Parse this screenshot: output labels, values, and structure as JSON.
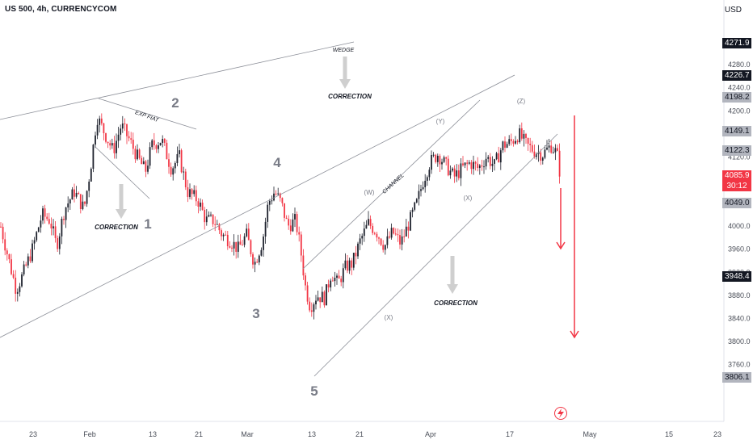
{
  "header": {
    "symbol_title": "US 500, 4h, CURRENCYCOM"
  },
  "currency_label": "USD",
  "colors": {
    "up": "#1e222d",
    "down": "#f23645",
    "line": "#8c8f98",
    "arrow": "#f23645",
    "shade": "#cfcfcf"
  },
  "chart_data": {
    "type": "candlestick",
    "title": "US 500, 4h, CURRENCYCOM",
    "ylim": [
      3740,
      4300
    ],
    "y_ticks": [
      "4280.0",
      "4240.0",
      "4200.0",
      "4160.0",
      "4120.0",
      "4080.0",
      "4040.0",
      "4000.0",
      "3960.0",
      "3920.0",
      "3880.0",
      "3840.0",
      "3800.0",
      "3760.0"
    ],
    "x_ticks": [
      "23",
      "Feb",
      "13",
      "21",
      "Mar",
      "13",
      "21",
      "Apr",
      "17",
      "May",
      "15",
      "23"
    ],
    "price_tags": [
      {
        "value": "4271.9",
        "style": "dark"
      },
      {
        "value": "4226.7",
        "style": "dark"
      },
      {
        "value": "4198.2",
        "style": "gray"
      },
      {
        "value": "4149.1",
        "style": "gray"
      },
      {
        "value": "4122.3",
        "style": "gray"
      },
      {
        "value": "4085.9",
        "style": "red"
      },
      {
        "value": "30:12",
        "style": "red"
      },
      {
        "value": "4049.0",
        "style": "gray"
      },
      {
        "value": "3948.4",
        "style": "dark"
      },
      {
        "value": "3806.1",
        "style": "gray"
      }
    ],
    "waypoints": [
      [
        0,
        4005
      ],
      [
        12,
        3935
      ],
      [
        20,
        3890
      ],
      [
        28,
        3915
      ],
      [
        40,
        3960
      ],
      [
        52,
        4020
      ],
      [
        62,
        4010
      ],
      [
        70,
        3965
      ],
      [
        80,
        4030
      ],
      [
        92,
        4060
      ],
      [
        104,
        4030
      ],
      [
        112,
        4100
      ],
      [
        120,
        4190
      ],
      [
        130,
        4160
      ],
      [
        140,
        4130
      ],
      [
        150,
        4175
      ],
      [
        160,
        4150
      ],
      [
        170,
        4120
      ],
      [
        180,
        4095
      ],
      [
        188,
        4140
      ],
      [
        200,
        4150
      ],
      [
        212,
        4100
      ],
      [
        222,
        4120
      ],
      [
        232,
        4060
      ],
      [
        245,
        4045
      ],
      [
        255,
        4010
      ],
      [
        265,
        4010
      ],
      [
        275,
        3985
      ],
      [
        285,
        3975
      ],
      [
        295,
        3960
      ],
      [
        305,
        3985
      ],
      [
        315,
        3935
      ],
      [
        325,
        3975
      ],
      [
        332,
        4040
      ],
      [
        340,
        4060
      ],
      [
        348,
        4040
      ],
      [
        356,
        4000
      ],
      [
        366,
        4010
      ],
      [
        372,
        3960
      ],
      [
        378,
        3895
      ],
      [
        384,
        3860
      ],
      [
        392,
        3880
      ],
      [
        402,
        3875
      ],
      [
        410,
        3920
      ],
      [
        418,
        3900
      ],
      [
        428,
        3930
      ],
      [
        436,
        3935
      ],
      [
        446,
        3975
      ],
      [
        456,
        4005
      ],
      [
        466,
        3990
      ],
      [
        476,
        3965
      ],
      [
        486,
        3990
      ],
      [
        496,
        3970
      ],
      [
        506,
        4005
      ],
      [
        516,
        4040
      ],
      [
        524,
        4080
      ],
      [
        532,
        4110
      ],
      [
        542,
        4125
      ],
      [
        552,
        4105
      ],
      [
        562,
        4085
      ],
      [
        572,
        4100
      ],
      [
        582,
        4110
      ],
      [
        592,
        4100
      ],
      [
        602,
        4120
      ],
      [
        612,
        4105
      ],
      [
        622,
        4140
      ],
      [
        632,
        4145
      ],
      [
        642,
        4160
      ],
      [
        652,
        4140
      ],
      [
        662,
        4130
      ],
      [
        672,
        4125
      ],
      [
        682,
        4140
      ],
      [
        688,
        4128
      ],
      [
        693,
        4110
      ],
      [
        696,
        4086
      ]
    ],
    "annotations": [
      {
        "text": "EXP FIAT",
        "kind": "label"
      },
      {
        "text": "CORRECTION",
        "kind": "label"
      },
      {
        "text": "1",
        "kind": "wave"
      },
      {
        "text": "2",
        "kind": "wave"
      },
      {
        "text": "3",
        "kind": "wave"
      },
      {
        "text": "4",
        "kind": "wave"
      },
      {
        "text": "5",
        "kind": "wave"
      },
      {
        "text": "WEDGE",
        "kind": "label"
      },
      {
        "text": "CORRECTION",
        "kind": "label"
      },
      {
        "text": "(W)",
        "kind": "wave-minor"
      },
      {
        "text": "CHANNEL",
        "kind": "label"
      },
      {
        "text": "(Y)",
        "kind": "wave-minor"
      },
      {
        "text": "(X)",
        "kind": "wave-minor"
      },
      {
        "text": "(Z)",
        "kind": "wave-minor"
      },
      {
        "text": "(X)",
        "kind": "wave-minor"
      },
      {
        "text": "CORRECTION",
        "kind": "label"
      }
    ]
  }
}
